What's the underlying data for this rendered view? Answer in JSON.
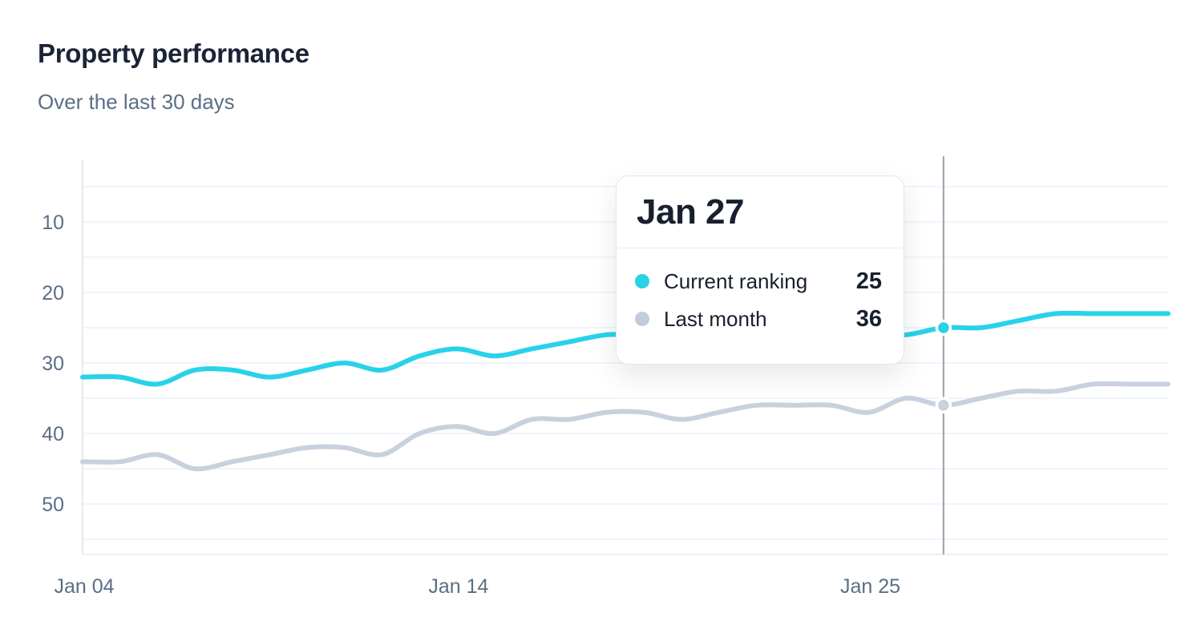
{
  "header": {
    "title": "Property performance",
    "subtitle": "Over the last 30 days"
  },
  "chart_data": {
    "type": "line",
    "title": "Property performance",
    "subtitle": "Over the last 30 days",
    "y_axis": {
      "ticks": [
        10,
        20,
        30,
        40,
        50
      ],
      "gridline_step": 5,
      "gridline_min": 5,
      "gridline_max": 55,
      "inverted": true,
      "meaning": "ranking position (lower number = better, drawn higher)"
    },
    "x_ticks": [
      {
        "label": "Jan 04",
        "index": 0
      },
      {
        "label": "Jan 14",
        "index": 10
      },
      {
        "label": "Jan 25",
        "index": 21
      }
    ],
    "series": [
      {
        "name": "Current ranking",
        "color": "#28d2e9",
        "values": [
          32,
          32,
          33,
          31,
          31,
          32,
          31,
          30,
          31,
          29,
          28,
          29,
          28,
          27,
          26,
          26,
          26,
          25,
          25,
          26,
          26,
          26,
          26,
          25,
          25,
          24,
          23,
          23,
          23,
          23
        ]
      },
      {
        "name": "Last month",
        "color": "#c9d1de",
        "values": [
          44,
          44,
          43,
          45,
          44,
          43,
          42,
          42,
          43,
          40,
          39,
          40,
          38,
          38,
          37,
          37,
          38,
          37,
          36,
          36,
          36,
          37,
          35,
          36,
          35,
          34,
          34,
          33,
          33,
          33
        ]
      }
    ],
    "highlight": {
      "index": 23,
      "date": "Jan 27"
    },
    "tooltip": {
      "title": "Jan 27",
      "rows": [
        {
          "series": "Current ranking",
          "value": "25",
          "color": "#28d2e9"
        },
        {
          "series": "Last month",
          "value": "36",
          "color": "#c3ccda"
        }
      ]
    },
    "legend_position": "tooltip-only",
    "grid": "horizontal-only"
  },
  "colors": {
    "grid": "#eef1f8",
    "axis_line": "#dfe4ee",
    "bottom_line": "#e7ecf4",
    "crosshair": "#9aa1ac",
    "tick_text": "#5c6e87",
    "title_text": "#1b2436",
    "subtitle_text": "#5c6e87",
    "tooltip_text": "#18202f",
    "background": "#ffffff"
  }
}
